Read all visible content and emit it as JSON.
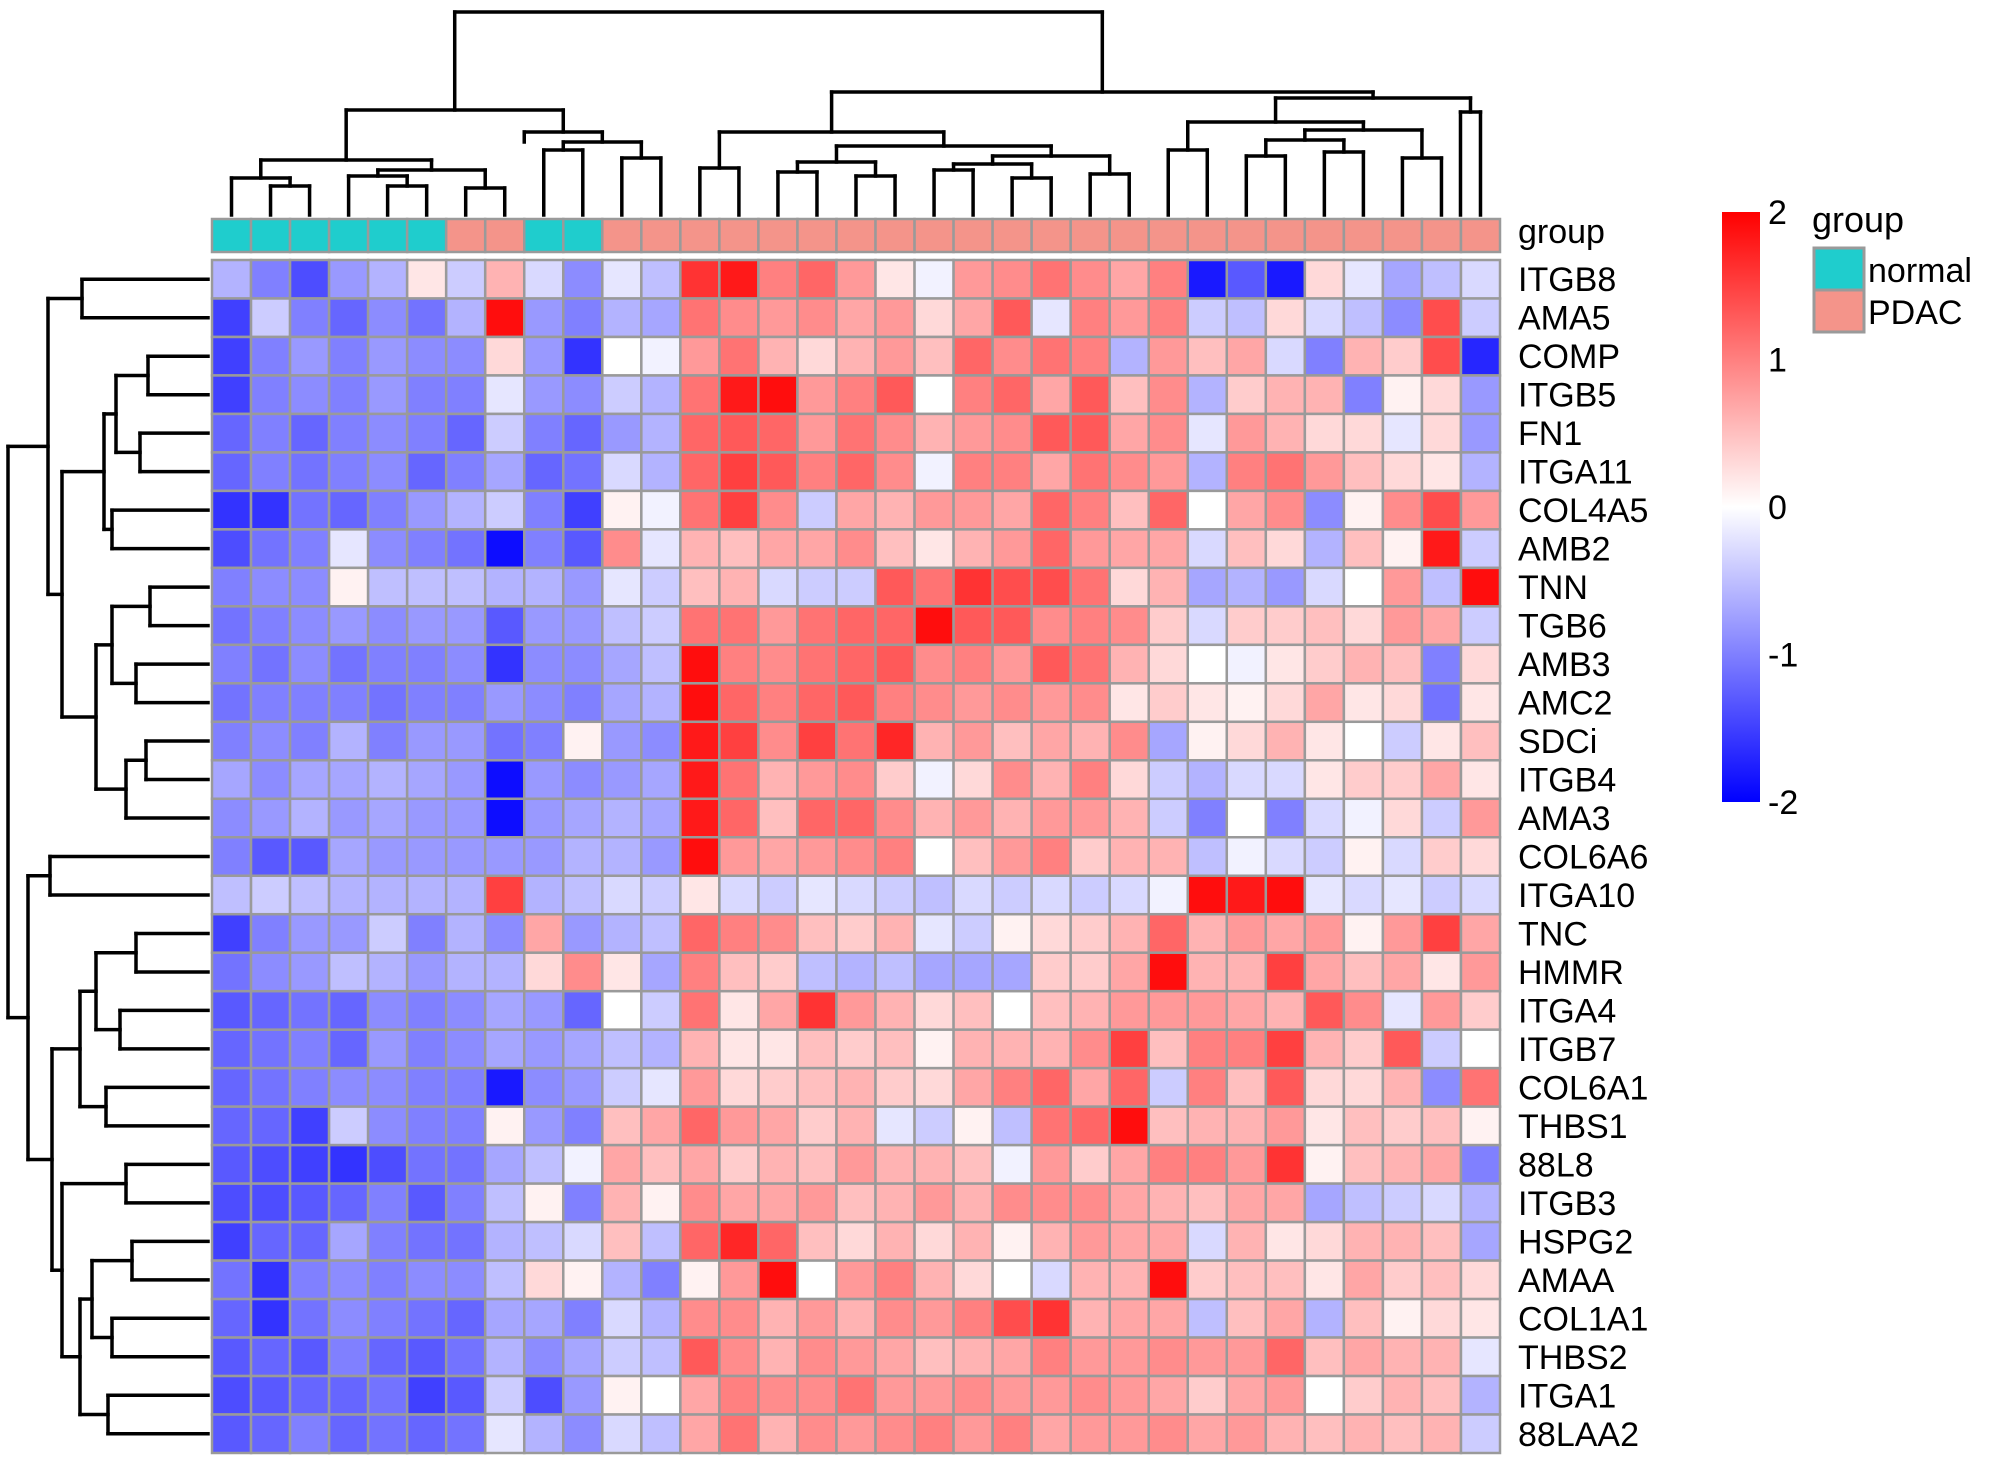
{
  "chart_data": {
    "type": "heatmap",
    "title": "",
    "annotation": {
      "title": "group",
      "levels": [
        {
          "name": "normal",
          "color": "#1FCDCD"
        },
        {
          "name": "PDAC",
          "color": "#F4948A"
        }
      ],
      "columns": [
        "normal",
        "normal",
        "normal",
        "normal",
        "normal",
        "normal",
        "PDAC",
        "PDAC",
        "normal",
        "normal",
        "PDAC",
        "PDAC",
        "PDAC",
        "PDAC",
        "PDAC",
        "PDAC",
        "PDAC",
        "PDAC",
        "PDAC",
        "PDAC",
        "PDAC",
        "PDAC",
        "PDAC",
        "PDAC",
        "PDAC",
        "PDAC",
        "PDAC",
        "PDAC",
        "PDAC",
        "PDAC",
        "PDAC",
        "PDAC",
        "PDAC"
      ]
    },
    "colorbar": {
      "min": -2,
      "max": 2,
      "ticks": [
        2,
        1,
        0,
        -1,
        -2
      ],
      "low_color": "#0000FF",
      "mid_color": "#FFFFFF",
      "high_color": "#FF0000"
    },
    "rows": [
      "ITGB8",
      "AMA5",
      "COMP",
      "ITGB5",
      "FN1",
      "ITGA11",
      "COL4A5",
      "AMB2",
      "TNN",
      "TGB6",
      "AMB3",
      "AMC2",
      "SDCi",
      "ITGB4",
      "AMA3",
      "COL6A6",
      "ITGA10",
      "TNC",
      "HMMR",
      "ITGA4",
      "ITGB7",
      "COL6A1",
      "THBS1",
      "88L8",
      "ITGB3",
      "HSPG2",
      "AMAA",
      "COL1A1",
      "THBS2",
      "ITGA1",
      "88LAA2"
    ],
    "values": [
      [
        -0.6,
        -1.0,
        -1.4,
        -0.8,
        -0.6,
        0.2,
        -0.4,
        0.6,
        -0.3,
        -0.9,
        -0.2,
        -0.5,
        1.6,
        1.8,
        1.0,
        1.2,
        0.8,
        0.2,
        -0.1,
        0.8,
        0.9,
        1.1,
        0.9,
        0.7,
        1.0,
        -1.8,
        -1.3,
        -1.8,
        0.3,
        -0.2,
        -0.7,
        -0.5,
        -0.3
      ],
      [
        -1.5,
        -0.4,
        -1.0,
        -1.2,
        -0.9,
        -1.1,
        -0.6,
        1.9,
        -0.8,
        -1.0,
        -0.6,
        -0.7,
        1.1,
        0.9,
        0.8,
        0.9,
        0.7,
        0.8,
        0.3,
        0.7,
        1.3,
        -0.2,
        1.0,
        0.8,
        1.0,
        -0.4,
        -0.5,
        0.3,
        -0.3,
        -0.5,
        -0.9,
        1.4,
        -0.4
      ],
      [
        -1.5,
        -1.0,
        -0.8,
        -1.0,
        -0.8,
        -0.9,
        -0.9,
        0.3,
        -0.8,
        -1.6,
        0.0,
        -0.1,
        0.8,
        1.1,
        0.6,
        0.3,
        0.6,
        0.8,
        0.5,
        1.2,
        0.9,
        1.1,
        1.0,
        -0.6,
        0.8,
        0.5,
        0.7,
        -0.3,
        -1.0,
        0.6,
        0.4,
        1.4,
        -1.7
      ],
      [
        -1.5,
        -1.0,
        -0.9,
        -1.0,
        -0.8,
        -1.0,
        -1.0,
        -0.2,
        -0.8,
        -0.9,
        -0.4,
        -0.6,
        1.1,
        1.8,
        1.9,
        0.8,
        1.0,
        1.3,
        0.0,
        1.0,
        1.2,
        0.7,
        1.3,
        0.5,
        0.9,
        -0.6,
        0.4,
        0.6,
        0.6,
        -1.0,
        0.1,
        0.3,
        -0.8
      ],
      [
        -1.2,
        -1.0,
        -1.2,
        -1.0,
        -0.9,
        -1.0,
        -1.2,
        -0.4,
        -1.0,
        -1.2,
        -0.8,
        -0.6,
        1.2,
        1.3,
        1.2,
        0.8,
        1.1,
        0.9,
        0.6,
        0.8,
        0.9,
        1.3,
        1.3,
        0.7,
        0.9,
        -0.2,
        0.8,
        0.6,
        0.3,
        0.3,
        -0.2,
        0.3,
        -0.8
      ],
      [
        -1.2,
        -1.0,
        -1.1,
        -1.0,
        -0.9,
        -1.2,
        -1.0,
        -0.7,
        -1.2,
        -1.1,
        -0.3,
        -0.6,
        1.2,
        1.5,
        1.3,
        1.0,
        1.2,
        0.9,
        -0.1,
        1.0,
        1.0,
        0.7,
        1.1,
        0.9,
        0.8,
        -0.6,
        1.0,
        1.1,
        0.8,
        0.5,
        0.3,
        0.2,
        -0.6
      ],
      [
        -1.6,
        -1.6,
        -1.1,
        -1.2,
        -1.0,
        -0.8,
        -0.6,
        -0.4,
        -1.0,
        -1.5,
        0.1,
        -0.1,
        1.1,
        1.5,
        0.9,
        -0.4,
        0.7,
        0.6,
        0.8,
        0.8,
        0.7,
        1.2,
        1.0,
        0.5,
        1.2,
        0.0,
        0.7,
        0.9,
        -0.9,
        0.1,
        0.9,
        1.4,
        0.8
      ],
      [
        -1.4,
        -1.1,
        -1.0,
        -0.2,
        -0.9,
        -1.0,
        -1.1,
        -1.9,
        -1.0,
        -1.3,
        0.9,
        -0.2,
        0.6,
        0.5,
        0.7,
        0.7,
        0.9,
        0.5,
        0.2,
        0.6,
        0.8,
        1.2,
        0.8,
        0.7,
        0.7,
        -0.3,
        0.5,
        0.3,
        -0.6,
        0.5,
        0.1,
        1.8,
        -0.4
      ],
      [
        -1.0,
        -0.9,
        -0.9,
        0.1,
        -0.5,
        -0.5,
        -0.5,
        -0.6,
        -0.6,
        -0.8,
        -0.2,
        -0.4,
        0.5,
        0.6,
        -0.3,
        -0.4,
        -0.4,
        1.3,
        1.1,
        1.6,
        1.4,
        1.4,
        1.1,
        0.3,
        0.6,
        -0.7,
        -0.6,
        -0.8,
        -0.3,
        0.0,
        0.8,
        -0.5,
        1.9
      ],
      [
        -1.1,
        -1.0,
        -0.9,
        -0.8,
        -0.9,
        -0.8,
        -0.8,
        -1.3,
        -0.8,
        -0.8,
        -0.5,
        -0.4,
        1.1,
        1.1,
        0.8,
        1.1,
        1.2,
        1.2,
        1.9,
        1.3,
        1.3,
        0.9,
        1.0,
        0.9,
        0.4,
        -0.3,
        0.4,
        0.4,
        0.5,
        0.3,
        0.8,
        0.7,
        -0.4
      ],
      [
        -1.0,
        -1.1,
        -0.9,
        -1.1,
        -1.0,
        -1.0,
        -0.9,
        -1.6,
        -0.9,
        -0.9,
        -0.7,
        -0.5,
        1.9,
        1.0,
        0.9,
        1.1,
        1.2,
        1.3,
        0.9,
        1.0,
        0.8,
        1.3,
        1.1,
        0.6,
        0.3,
        0.0,
        -0.1,
        0.2,
        0.4,
        0.6,
        0.5,
        -1.0,
        0.3
      ],
      [
        -1.1,
        -1.0,
        -1.0,
        -1.0,
        -1.1,
        -1.0,
        -1.0,
        -0.8,
        -0.9,
        -1.0,
        -0.7,
        -0.6,
        1.9,
        1.2,
        1.0,
        1.2,
        1.3,
        1.0,
        0.9,
        0.8,
        0.9,
        0.8,
        0.9,
        0.2,
        0.4,
        0.2,
        0.1,
        0.3,
        0.7,
        0.2,
        0.3,
        -1.1,
        0.2
      ],
      [
        -1.0,
        -0.9,
        -1.0,
        -0.6,
        -1.0,
        -0.8,
        -0.8,
        -1.1,
        -1.0,
        0.1,
        -0.8,
        -0.9,
        1.8,
        1.5,
        0.9,
        1.5,
        1.1,
        1.7,
        0.6,
        0.8,
        0.5,
        0.7,
        0.6,
        0.9,
        -0.7,
        0.1,
        0.3,
        0.6,
        0.2,
        0.0,
        -0.4,
        0.2,
        0.5
      ],
      [
        -0.7,
        -0.9,
        -0.7,
        -0.7,
        -0.6,
        -0.7,
        -0.8,
        -1.9,
        -0.8,
        -0.9,
        -0.8,
        -0.7,
        1.8,
        1.1,
        0.6,
        0.8,
        0.9,
        0.4,
        -0.1,
        0.3,
        0.9,
        0.6,
        1.0,
        0.3,
        -0.4,
        -0.6,
        -0.3,
        -0.3,
        0.2,
        0.4,
        0.4,
        0.7,
        0.2
      ],
      [
        -0.9,
        -0.8,
        -0.6,
        -0.8,
        -0.7,
        -0.8,
        -0.8,
        -1.9,
        -0.8,
        -0.7,
        -0.6,
        -0.7,
        1.8,
        1.2,
        0.5,
        1.2,
        1.2,
        0.9,
        0.6,
        0.8,
        0.6,
        0.8,
        0.8,
        0.6,
        -0.4,
        -1.0,
        0.0,
        -1.0,
        -0.3,
        -0.1,
        0.3,
        -0.4,
        0.8
      ],
      [
        -1.0,
        -1.3,
        -1.3,
        -0.7,
        -0.8,
        -0.8,
        -0.8,
        -0.8,
        -0.8,
        -0.6,
        -0.6,
        -0.8,
        1.9,
        0.8,
        0.7,
        0.8,
        0.9,
        1.0,
        0.0,
        0.5,
        0.8,
        1.0,
        0.4,
        0.6,
        0.6,
        -0.5,
        -0.1,
        -0.3,
        -0.4,
        0.1,
        -0.3,
        0.4,
        0.3
      ],
      [
        -0.5,
        -0.4,
        -0.5,
        -0.6,
        -0.6,
        -0.6,
        -0.6,
        1.5,
        -0.6,
        -0.5,
        -0.3,
        -0.4,
        0.2,
        -0.3,
        -0.4,
        -0.2,
        -0.3,
        -0.4,
        -0.5,
        -0.3,
        -0.4,
        -0.3,
        -0.4,
        -0.3,
        -0.1,
        1.9,
        1.8,
        1.9,
        -0.2,
        -0.3,
        -0.2,
        -0.4,
        -0.3
      ],
      [
        -1.5,
        -1.0,
        -0.8,
        -0.8,
        -0.4,
        -1.0,
        -0.6,
        -0.9,
        0.7,
        -0.8,
        -0.6,
        -0.5,
        1.2,
        1.0,
        0.9,
        0.5,
        0.4,
        0.6,
        -0.2,
        -0.4,
        0.1,
        0.3,
        0.4,
        0.6,
        1.2,
        0.6,
        0.8,
        0.7,
        0.8,
        0.1,
        0.8,
        1.5,
        0.7
      ],
      [
        -1.1,
        -0.9,
        -0.8,
        -0.5,
        -0.6,
        -0.8,
        -0.6,
        -0.6,
        0.3,
        0.9,
        0.2,
        -0.7,
        1.0,
        0.5,
        0.4,
        -0.5,
        -0.6,
        -0.5,
        -0.7,
        -0.7,
        -0.7,
        0.4,
        0.4,
        0.7,
        1.9,
        0.6,
        0.6,
        1.5,
        0.7,
        0.5,
        0.7,
        0.2,
        0.8
      ],
      [
        -1.3,
        -1.2,
        -1.1,
        -1.2,
        -0.9,
        -1.0,
        -0.9,
        -0.7,
        -0.8,
        -1.2,
        0.0,
        -0.4,
        1.1,
        0.2,
        0.7,
        1.6,
        0.8,
        0.6,
        0.3,
        0.5,
        0.0,
        0.5,
        0.6,
        0.8,
        0.8,
        0.8,
        0.7,
        0.6,
        1.3,
        0.9,
        -0.2,
        0.8,
        0.4
      ],
      [
        -1.2,
        -1.1,
        -1.0,
        -1.2,
        -0.8,
        -1.0,
        -0.9,
        -0.7,
        -0.8,
        -0.7,
        -0.5,
        -0.6,
        0.6,
        0.2,
        0.2,
        0.5,
        0.4,
        0.5,
        0.1,
        0.6,
        0.6,
        0.6,
        0.9,
        1.5,
        0.5,
        1.0,
        1.0,
        1.5,
        0.6,
        0.4,
        1.3,
        -0.4,
        0.0
      ],
      [
        -1.2,
        -1.1,
        -1.0,
        -0.9,
        -0.9,
        -1.0,
        -1.0,
        -1.8,
        -0.9,
        -0.8,
        -0.4,
        -0.2,
        0.8,
        0.3,
        0.4,
        0.5,
        0.6,
        0.4,
        0.3,
        0.7,
        1.0,
        1.2,
        0.7,
        1.2,
        -0.4,
        1.0,
        0.5,
        1.3,
        0.3,
        0.3,
        0.6,
        -0.9,
        1.1
      ],
      [
        -1.2,
        -1.2,
        -1.5,
        -0.4,
        -0.9,
        -1.0,
        -1.0,
        0.1,
        -0.8,
        -1.0,
        0.5,
        0.7,
        1.2,
        0.8,
        0.7,
        0.4,
        0.6,
        -0.2,
        -0.4,
        0.1,
        -0.5,
        1.1,
        1.2,
        1.9,
        0.5,
        0.6,
        0.6,
        0.8,
        0.2,
        0.5,
        0.4,
        0.5,
        0.1
      ],
      [
        -1.3,
        -1.4,
        -1.5,
        -1.6,
        -1.4,
        -1.1,
        -1.1,
        -0.7,
        -0.5,
        -0.1,
        0.7,
        0.5,
        0.7,
        0.4,
        0.6,
        0.5,
        0.8,
        0.6,
        0.6,
        0.5,
        -0.1,
        0.8,
        0.4,
        0.7,
        1.0,
        1.0,
        0.8,
        1.6,
        0.1,
        0.5,
        0.6,
        0.7,
        -1.0
      ],
      [
        -1.4,
        -1.4,
        -1.3,
        -1.2,
        -1.0,
        -1.3,
        -1.0,
        -0.5,
        0.1,
        -1.0,
        0.6,
        0.1,
        0.9,
        0.7,
        0.7,
        0.8,
        0.5,
        0.6,
        0.8,
        0.6,
        0.9,
        0.9,
        0.9,
        0.7,
        0.6,
        0.5,
        0.7,
        0.7,
        -0.7,
        -0.5,
        -0.4,
        -0.3,
        -0.6
      ],
      [
        -1.5,
        -1.2,
        -1.2,
        -0.7,
        -1.0,
        -1.1,
        -1.1,
        -0.6,
        -0.5,
        -0.3,
        0.5,
        -0.5,
        1.2,
        1.7,
        1.2,
        0.5,
        0.3,
        0.6,
        0.3,
        0.6,
        0.1,
        0.6,
        0.8,
        0.7,
        0.7,
        -0.3,
        0.6,
        0.2,
        0.3,
        0.6,
        0.6,
        0.5,
        -0.7
      ],
      [
        -1.1,
        -1.6,
        -1.0,
        -0.9,
        -1.0,
        -0.9,
        -0.9,
        -0.5,
        0.3,
        0.1,
        -0.6,
        -1.0,
        0.1,
        0.8,
        1.9,
        0.0,
        0.8,
        1.0,
        0.6,
        0.3,
        0.0,
        -0.3,
        0.6,
        0.6,
        1.9,
        0.4,
        0.5,
        0.5,
        0.2,
        0.7,
        0.4,
        0.5,
        0.3
      ],
      [
        -1.2,
        -1.6,
        -1.1,
        -0.9,
        -1.0,
        -1.1,
        -1.2,
        -0.7,
        -0.7,
        -1.0,
        -0.3,
        -0.6,
        0.9,
        0.9,
        0.6,
        0.8,
        0.6,
        0.9,
        0.8,
        1.0,
        1.4,
        1.6,
        0.6,
        0.7,
        0.7,
        -0.5,
        0.5,
        0.7,
        -0.6,
        0.5,
        0.1,
        0.3,
        0.2
      ],
      [
        -1.3,
        -1.2,
        -1.3,
        -1.0,
        -1.2,
        -1.3,
        -1.1,
        -0.6,
        -0.9,
        -0.7,
        -0.4,
        -0.5,
        1.3,
        0.9,
        0.6,
        0.9,
        0.8,
        0.7,
        0.5,
        0.6,
        0.7,
        1.0,
        0.8,
        0.8,
        0.9,
        0.8,
        0.8,
        1.2,
        0.5,
        0.7,
        0.6,
        0.6,
        -0.2
      ],
      [
        -1.4,
        -1.3,
        -1.2,
        -1.2,
        -1.1,
        -1.5,
        -1.3,
        -0.4,
        -1.4,
        -0.8,
        0.1,
        0.0,
        0.7,
        1.0,
        0.9,
        0.9,
        1.1,
        0.8,
        0.8,
        0.9,
        0.8,
        0.8,
        0.9,
        0.8,
        0.7,
        0.4,
        0.7,
        0.8,
        0.0,
        0.4,
        0.6,
        0.5,
        -0.6
      ],
      [
        -1.3,
        -1.2,
        -1.0,
        -1.2,
        -1.1,
        -1.2,
        -1.1,
        -0.2,
        -0.6,
        -0.9,
        -0.3,
        -0.5,
        0.7,
        1.1,
        0.6,
        0.9,
        0.8,
        0.9,
        1.0,
        0.8,
        1.0,
        0.7,
        0.8,
        0.8,
        0.9,
        0.7,
        0.8,
        0.6,
        0.5,
        0.6,
        0.5,
        0.6,
        -0.4
      ]
    ]
  },
  "legend": {
    "group_title": "group",
    "normal_label": "normal",
    "pdac_label": "PDAC",
    "annotation_row_label": "group"
  }
}
